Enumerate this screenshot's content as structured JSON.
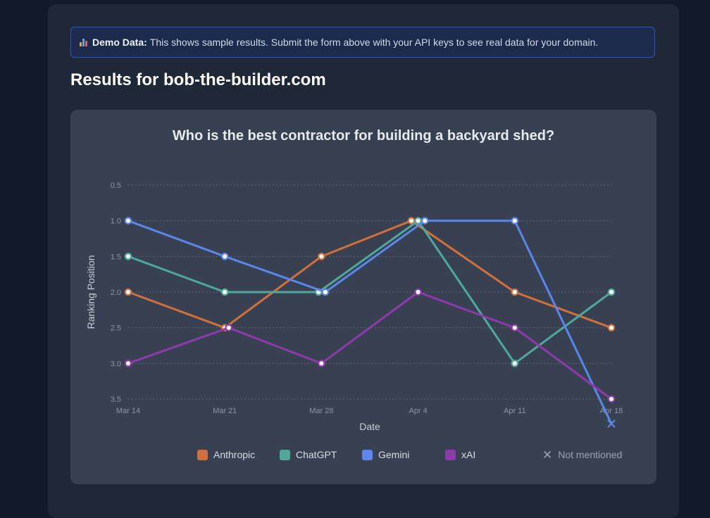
{
  "notice": {
    "icon": "bar-chart-icon",
    "bold": "Demo Data:",
    "text": "This shows sample results. Submit the form above with your API keys to see real data for your domain."
  },
  "results_title": "Results for bob-the-builder.com",
  "legend": {
    "not_mentioned_label": "Not mentioned"
  },
  "chart_data": {
    "type": "line",
    "title": "Who is the best contractor for building a backyard shed?",
    "xlabel": "Date",
    "ylabel": "Ranking Position",
    "categories": [
      "Mar 14",
      "Mar 21",
      "Mar 28",
      "Apr 4",
      "Apr 11",
      "Apr 18"
    ],
    "yticks": [
      0.5,
      1.0,
      1.5,
      2.0,
      2.5,
      3.0,
      3.5
    ],
    "ylim": [
      0.5,
      3.5
    ],
    "y_inverted": true,
    "grid": "horizontal dotted",
    "legend_position": "bottom",
    "series": [
      {
        "name": "Anthropic",
        "color": "#d2703c",
        "points": [
          [
            0,
            2.0
          ],
          [
            1,
            2.5
          ],
          [
            2,
            1.5
          ],
          [
            2.93,
            1.0
          ],
          [
            4,
            2.0
          ],
          [
            5,
            2.5
          ]
        ]
      },
      {
        "name": "ChatGPT",
        "color": "#4ea99a",
        "points": [
          [
            0,
            1.5
          ],
          [
            1,
            2.0
          ],
          [
            1.97,
            2.0
          ],
          [
            3,
            1.0
          ],
          [
            4,
            3.0
          ],
          [
            5,
            2.0
          ]
        ]
      },
      {
        "name": "Gemini",
        "color": "#5b86ec",
        "points": [
          [
            0,
            1.0
          ],
          [
            1,
            1.5
          ],
          [
            2.04,
            2.0
          ],
          [
            3.07,
            1.0
          ],
          [
            4,
            1.0
          ],
          [
            5,
            null
          ]
        ]
      },
      {
        "name": "xAI",
        "color": "#8e3aab",
        "points": [
          [
            0,
            3.0
          ],
          [
            1.04,
            2.5
          ],
          [
            2,
            3.0
          ],
          [
            3,
            2.0
          ],
          [
            4,
            2.5
          ],
          [
            5,
            3.5
          ]
        ]
      }
    ],
    "not_mentioned_marker": "x"
  }
}
